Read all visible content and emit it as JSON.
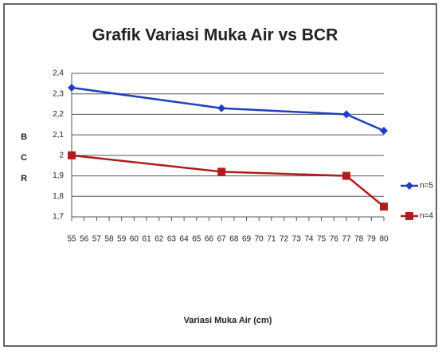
{
  "chart_data": {
    "type": "line",
    "title": "Grafik Variasi Muka Air vs BCR",
    "xlabel": "Variasi Muka Air (cm)",
    "ylabel": "BCR",
    "x": [
      55,
      67,
      77,
      80
    ],
    "series": [
      {
        "name": "n=5",
        "color": "#1f3fbf",
        "marker": "diamond",
        "values": [
          2.33,
          2.23,
          2.2,
          2.12
        ]
      },
      {
        "name": "n=4",
        "color": "#b01c1c",
        "marker": "square",
        "values": [
          2.0,
          1.92,
          1.9,
          1.75
        ]
      }
    ],
    "xlim": [
      55,
      80
    ],
    "xticks": [
      55,
      56,
      57,
      58,
      59,
      60,
      61,
      62,
      63,
      64,
      65,
      66,
      67,
      68,
      69,
      70,
      71,
      72,
      73,
      74,
      75,
      76,
      77,
      78,
      79,
      80
    ],
    "ylim": [
      1.7,
      2.4
    ],
    "yticks": [
      {
        "value": 1.7,
        "label": "1,7"
      },
      {
        "value": 1.8,
        "label": "1,8"
      },
      {
        "value": 1.9,
        "label": "1,9"
      },
      2,
      {
        "value": 2.1,
        "label": "2,1"
      },
      {
        "value": 2.2,
        "label": "2,2"
      },
      {
        "value": 2.3,
        "label": "2,3"
      },
      {
        "value": 2.4,
        "label": "2,4"
      }
    ],
    "grid": true,
    "legend": "right"
  }
}
